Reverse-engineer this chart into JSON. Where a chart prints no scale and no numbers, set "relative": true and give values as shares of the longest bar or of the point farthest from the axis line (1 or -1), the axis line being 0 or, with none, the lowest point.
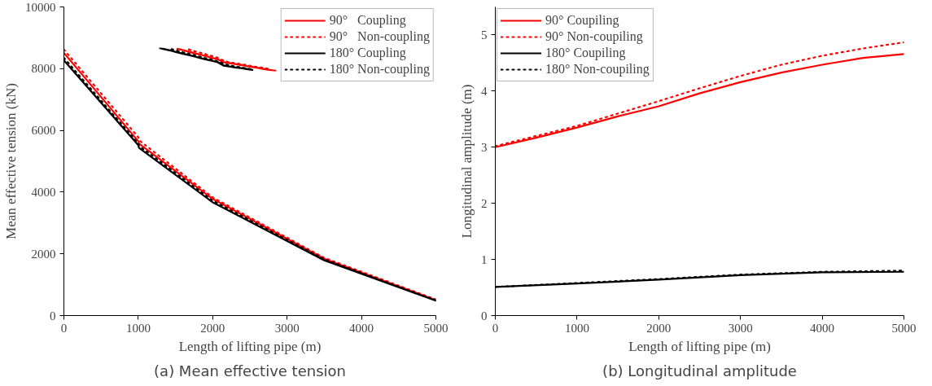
{
  "chart_data": [
    {
      "type": "line",
      "title": "(a) Mean effective tension",
      "xlabel": "Length of lifting pipe (m)",
      "ylabel": "Mean effective tension (kN)",
      "xlim": [
        0,
        5000
      ],
      "ylim": [
        0,
        10000
      ],
      "xticks": [
        0,
        1000,
        2000,
        3000,
        4000,
        5000
      ],
      "yticks": [
        0,
        2000,
        4000,
        6000,
        8000,
        10000
      ],
      "grid": false,
      "legend": "top right",
      "series": [
        {
          "name": "90°   Coupling",
          "color": "#ff0000",
          "line_style": "solid",
          "x": [
            0,
            1000,
            1010,
            2000,
            3500,
            5000
          ],
          "values": [
            8510,
            5650,
            5570,
            3780,
            1840,
            500
          ]
        },
        {
          "name": "90°   Non-coupling",
          "color": "#ff0000",
          "line_style": "dotted",
          "x": [
            0,
            1000,
            1010,
            2000,
            3500,
            5000
          ],
          "values": [
            8620,
            5780,
            5680,
            3830,
            1870,
            520
          ]
        },
        {
          "name": "180° Coupling",
          "color": "#000000",
          "line_style": "solid",
          "x": [
            0,
            1000,
            1010,
            2000,
            3500,
            5000
          ],
          "values": [
            8270,
            5520,
            5430,
            3670,
            1790,
            480
          ]
        },
        {
          "name": "180° Non-coupling",
          "color": "#000000",
          "line_style": "dotted",
          "x": [
            0,
            1000,
            1010,
            2000,
            3500,
            5000
          ],
          "values": [
            8350,
            5580,
            5500,
            3720,
            1820,
            490
          ]
        }
      ]
    },
    {
      "type": "line",
      "relative": true,
      "tick_labels": false,
      "grid": false,
      "categories": [
        null,
        null,
        null,
        null,
        null,
        null,
        null,
        null,
        null,
        null,
        null,
        null,
        null,
        null,
        null,
        null,
        null,
        null,
        null,
        null,
        null
      ],
      "series": [
        {
          "color": "#ff0000",
          "line_style": "solid",
          "values": [
            null,
            null,
            null,
            0.97,
            0.91,
            0.84,
            0.77,
            0.71,
            0.64,
            0.57,
            0.51,
            0.38,
            0.34,
            0.3,
            0.26,
            0.21,
            0.17,
            0.13,
            0.08,
            0.04,
            0.0
          ]
        },
        {
          "color": "#ff0000",
          "line_style": "dotted",
          "values": [
            null,
            null,
            null,
            null,
            null,
            0.94,
            0.86,
            0.79,
            0.72,
            0.65,
            0.57,
            0.45,
            0.37,
            0.33,
            0.29,
            0.25,
            0.2,
            0.16,
            0.12,
            0.08,
            null
          ]
        },
        {
          "color": "#000000",
          "line_style": "solid",
          "values": [
            1.0,
            0.94,
            0.88,
            0.81,
            0.75,
            0.69,
            0.63,
            0.56,
            0.5,
            0.44,
            0.38,
            0.23,
            0.19,
            0.15,
            0.12,
            0.08,
            0.04,
            null,
            null,
            null,
            null
          ]
        },
        {
          "color": "#000000",
          "line_style": "dotted",
          "values": [
            null,
            null,
            0.95,
            0.88,
            0.81,
            0.75,
            0.68,
            0.61,
            0.54,
            0.48,
            0.41,
            0.31,
            0.23,
            0.19,
            0.15,
            0.1,
            0.06,
            null,
            null,
            null,
            null
          ]
        }
      ]
    },
    {
      "type": "line",
      "title": "(b) Longitudinal amplitude",
      "xlabel": "Length of lifting pipe (m)",
      "ylabel": "Longitudinal amplitude (m)",
      "xlim": [
        0,
        5000
      ],
      "ylim": [
        0,
        5.5
      ],
      "xticks": [
        0,
        1000,
        2000,
        3000,
        4000,
        5000
      ],
      "yticks": [
        0,
        1,
        2,
        3,
        4,
        5
      ],
      "grid": false,
      "legend": "top left",
      "series": [
        {
          "name": "90° Coupiling",
          "color": "#ff0000",
          "line_style": "solid",
          "x": [
            0,
            500,
            1000,
            1500,
            2000,
            2500,
            3000,
            3500,
            4000,
            4500,
            5000
          ],
          "values": [
            3.0,
            3.17,
            3.35,
            3.55,
            3.73,
            3.96,
            4.16,
            4.33,
            4.47,
            4.59,
            4.66
          ]
        },
        {
          "name": "90° Non-coupiling",
          "color": "#ff0000",
          "line_style": "dotted",
          "x": [
            0,
            500,
            1000,
            1500,
            2000,
            2500,
            3000,
            3500,
            4000,
            4500,
            5000
          ],
          "values": [
            3.02,
            3.2,
            3.38,
            3.6,
            3.82,
            4.05,
            4.27,
            4.47,
            4.63,
            4.76,
            4.87
          ]
        },
        {
          "name": "180° Coupiling",
          "color": "#000000",
          "line_style": "solid",
          "x": [
            0,
            1000,
            2000,
            3000,
            4000,
            5000
          ],
          "values": [
            0.51,
            0.57,
            0.64,
            0.72,
            0.77,
            0.78
          ]
        },
        {
          "name": "180° Non-coupiling",
          "color": "#000000",
          "line_style": "dotted",
          "x": [
            0,
            1000,
            2000,
            3000,
            4000,
            5000
          ],
          "values": [
            0.51,
            0.58,
            0.65,
            0.73,
            0.78,
            0.8
          ]
        }
      ]
    }
  ]
}
